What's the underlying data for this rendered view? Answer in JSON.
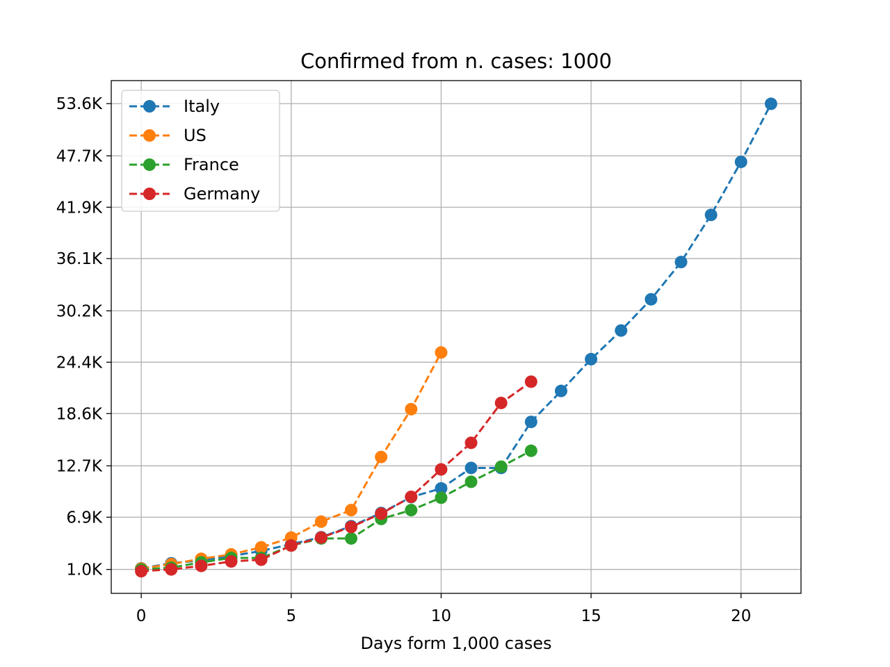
{
  "chart_data": {
    "type": "line",
    "title": "Confirmed from n. cases: 1000",
    "xlabel": "Days form 1,000 cases",
    "ylabel": "",
    "xlim": [
      -1,
      22
    ],
    "ylim": [
      -1700,
      56200
    ],
    "xticks": [
      0,
      5,
      10,
      15,
      20
    ],
    "yticks": [
      {
        "value": 1000,
        "label": "1.0K"
      },
      {
        "value": 6900,
        "label": "6.9K"
      },
      {
        "value": 12700,
        "label": "12.7K"
      },
      {
        "value": 18600,
        "label": "18.6K"
      },
      {
        "value": 24400,
        "label": "24.4K"
      },
      {
        "value": 30200,
        "label": "30.2K"
      },
      {
        "value": 36100,
        "label": "36.1K"
      },
      {
        "value": 41900,
        "label": "41.9K"
      },
      {
        "value": 47700,
        "label": "47.7K"
      },
      {
        "value": 53600,
        "label": "53.6K"
      }
    ],
    "grid": true,
    "legend_position": "top-left",
    "line_style": "dashed",
    "marker": "circle",
    "series": [
      {
        "name": "Italy",
        "color": "#1f77b4",
        "x": [
          0,
          1,
          2,
          3,
          4,
          5,
          6,
          7,
          8,
          9,
          10,
          11,
          12,
          13,
          14,
          15,
          16,
          17,
          18,
          19,
          20,
          21
        ],
        "y": [
          1128,
          1694,
          2036,
          2502,
          3089,
          3858,
          4636,
          5883,
          7375,
          9172,
          10149,
          12462,
          12462,
          17660,
          21157,
          24747,
          27980,
          31506,
          35713,
          41035,
          47021,
          53578
        ]
      },
      {
        "name": "US",
        "color": "#ff7f0e",
        "x": [
          0,
          1,
          2,
          3,
          4,
          5,
          6,
          7,
          8,
          9,
          10
        ],
        "y": [
          1100,
          1600,
          2200,
          2700,
          3500,
          4600,
          6400,
          7700,
          13700,
          19100,
          25500
        ]
      },
      {
        "name": "France",
        "color": "#2ca02c",
        "x": [
          0,
          1,
          2,
          3,
          4,
          5,
          6,
          7,
          8,
          9,
          10,
          11,
          12,
          13
        ],
        "y": [
          1000,
          1200,
          1800,
          2300,
          2300,
          3700,
          4500,
          4500,
          6700,
          7700,
          9100,
          10900,
          12600,
          14400
        ]
      },
      {
        "name": "Germany",
        "color": "#d62728",
        "x": [
          0,
          1,
          2,
          3,
          4,
          5,
          6,
          7,
          8,
          9,
          10,
          11,
          12,
          13
        ],
        "y": [
          800,
          1000,
          1400,
          1900,
          2100,
          3700,
          4600,
          5800,
          7300,
          9200,
          12300,
          15300,
          19800,
          22200
        ]
      }
    ]
  }
}
